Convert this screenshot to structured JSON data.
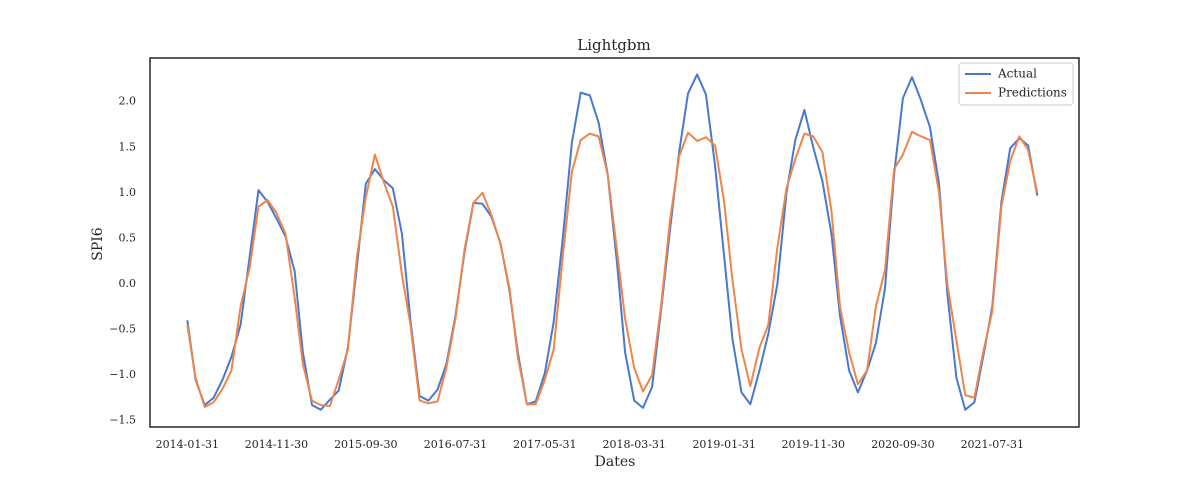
{
  "chart_data": {
    "type": "line",
    "title": "Lightgbm",
    "x_label": "Dates",
    "y_label": "SPI6",
    "x": [
      "2014-01-31",
      "2014-02-28",
      "2014-03-31",
      "2014-04-30",
      "2014-05-31",
      "2014-06-30",
      "2014-07-31",
      "2014-08-31",
      "2014-09-30",
      "2014-10-31",
      "2014-11-30",
      "2014-12-31",
      "2015-01-31",
      "2015-02-28",
      "2015-03-31",
      "2015-04-30",
      "2015-05-31",
      "2015-06-30",
      "2015-07-31",
      "2015-08-31",
      "2015-09-30",
      "2015-10-31",
      "2015-11-30",
      "2015-12-31",
      "2016-01-31",
      "2016-02-29",
      "2016-03-31",
      "2016-04-30",
      "2016-05-31",
      "2016-06-30",
      "2016-07-31",
      "2016-08-31",
      "2016-09-30",
      "2016-10-31",
      "2016-11-30",
      "2016-12-31",
      "2017-01-31",
      "2017-02-28",
      "2017-03-31",
      "2017-04-30",
      "2017-05-31",
      "2017-06-30",
      "2017-07-31",
      "2017-08-31",
      "2017-09-30",
      "2017-10-31",
      "2017-11-30",
      "2017-12-31",
      "2018-01-31",
      "2018-02-28",
      "2018-03-31",
      "2018-04-30",
      "2018-05-31",
      "2018-06-30",
      "2018-07-31",
      "2018-08-31",
      "2018-09-30",
      "2018-10-31",
      "2018-11-30",
      "2018-12-31",
      "2019-01-31",
      "2019-02-28",
      "2019-03-31",
      "2019-04-30",
      "2019-05-31",
      "2019-06-30",
      "2019-07-31",
      "2019-08-31",
      "2019-09-30",
      "2019-10-31",
      "2019-11-30",
      "2019-12-31",
      "2020-01-31",
      "2020-02-29",
      "2020-03-31",
      "2020-04-30",
      "2020-05-31",
      "2020-06-30",
      "2020-07-31",
      "2020-08-31",
      "2020-09-30",
      "2020-10-31",
      "2020-11-30",
      "2020-12-31",
      "2021-01-31",
      "2021-02-28",
      "2021-03-31",
      "2021-04-30",
      "2021-05-31",
      "2021-06-30",
      "2021-07-31",
      "2021-08-31",
      "2021-09-30",
      "2021-10-31",
      "2021-11-30",
      "2021-12-31"
    ],
    "series": [
      {
        "name": "Actual",
        "color": "#4878d0",
        "values": [
          -0.4,
          -1.05,
          -1.33,
          -1.25,
          -1.05,
          -0.8,
          -0.45,
          0.3,
          1.03,
          0.9,
          0.72,
          0.52,
          0.14,
          -0.75,
          -1.33,
          -1.38,
          -1.27,
          -1.17,
          -0.7,
          0.2,
          1.1,
          1.26,
          1.14,
          1.05,
          0.55,
          -0.4,
          -1.23,
          -1.28,
          -1.16,
          -0.88,
          -0.35,
          0.35,
          0.89,
          0.88,
          0.74,
          0.45,
          -0.08,
          -0.75,
          -1.32,
          -1.29,
          -0.98,
          -0.42,
          0.5,
          1.55,
          2.1,
          2.07,
          1.77,
          1.2,
          0.25,
          -0.75,
          -1.28,
          -1.36,
          -1.13,
          -0.3,
          0.6,
          1.45,
          2.09,
          2.3,
          2.08,
          1.3,
          0.3,
          -0.6,
          -1.19,
          -1.32,
          -0.95,
          -0.55,
          0.0,
          1.0,
          1.58,
          1.91,
          1.5,
          1.13,
          0.55,
          -0.35,
          -0.95,
          -1.19,
          -0.95,
          -0.65,
          -0.05,
          1.2,
          2.04,
          2.27,
          2.02,
          1.72,
          1.1,
          -0.1,
          -1.03,
          -1.38,
          -1.3,
          -0.8,
          -0.25,
          0.9,
          1.49,
          1.6,
          1.52,
          0.97
        ]
      },
      {
        "name": "Predictions",
        "color": "#ee854a",
        "values": [
          -0.45,
          -1.03,
          -1.35,
          -1.3,
          -1.15,
          -0.95,
          -0.25,
          0.18,
          0.85,
          0.92,
          0.78,
          0.55,
          -0.15,
          -0.88,
          -1.28,
          -1.33,
          -1.34,
          -1.05,
          -0.72,
          0.3,
          0.95,
          1.42,
          1.12,
          0.85,
          0.1,
          -0.45,
          -1.28,
          -1.31,
          -1.29,
          -0.92,
          -0.38,
          0.38,
          0.89,
          1.0,
          0.76,
          0.44,
          -0.05,
          -0.8,
          -1.32,
          -1.32,
          -1.05,
          -0.72,
          0.3,
          1.23,
          1.58,
          1.65,
          1.62,
          1.2,
          0.38,
          -0.38,
          -0.92,
          -1.18,
          -1.0,
          -0.25,
          0.7,
          1.4,
          1.66,
          1.57,
          1.61,
          1.52,
          0.9,
          0.05,
          -0.72,
          -1.12,
          -0.7,
          -0.45,
          0.4,
          1.05,
          1.37,
          1.65,
          1.62,
          1.45,
          0.8,
          -0.25,
          -0.75,
          -1.1,
          -0.95,
          -0.25,
          0.15,
          1.26,
          1.42,
          1.67,
          1.62,
          1.58,
          1.0,
          0.0,
          -0.62,
          -1.22,
          -1.25,
          -0.75,
          -0.3,
          0.85,
          1.35,
          1.62,
          1.47,
          1.0
        ]
      }
    ],
    "xlim": [
      "2013-09-26",
      "2022-05-22"
    ],
    "xticks": [
      "2014-01-31",
      "2014-11-30",
      "2015-09-30",
      "2016-07-31",
      "2017-05-31",
      "2018-03-31",
      "2019-01-31",
      "2019-11-30",
      "2020-09-30",
      "2021-07-31"
    ],
    "ylim": [
      -1.57,
      2.48
    ],
    "yticks": [
      {
        "value": -1.5,
        "label": "−1.5"
      },
      {
        "value": -1,
        "label": "−1.0"
      },
      {
        "value": -0.5,
        "label": "−0.5"
      },
      {
        "value": 0,
        "label": "0.0"
      },
      {
        "value": 0.5,
        "label": "0.5"
      },
      {
        "value": 1,
        "label": "1.0"
      },
      {
        "value": 1.5,
        "label": "1.5"
      },
      {
        "value": 2,
        "label": "2.0"
      }
    ],
    "grid": false,
    "legend": "upper right"
  }
}
